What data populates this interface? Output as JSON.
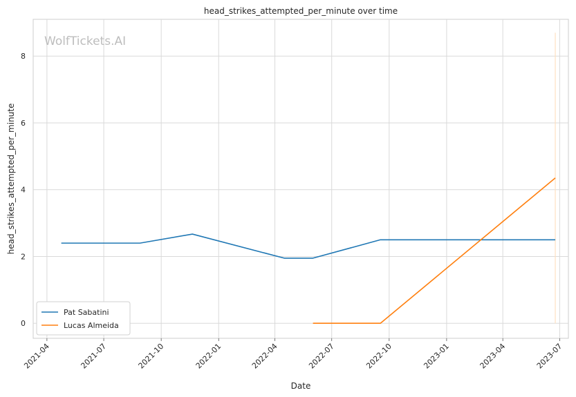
{
  "chart_data": {
    "type": "line",
    "title": "head_strikes_attempted_per_minute over time",
    "xlabel": "Date",
    "ylabel": "head_strikes_attempted_per_minute",
    "xlim": [
      "2021-03-10",
      "2023-07-15"
    ],
    "ylim": [
      -0.45,
      9.1
    ],
    "x_ticks": [
      "2021-04",
      "2021-07",
      "2021-10",
      "2022-01",
      "2022-04",
      "2022-07",
      "2022-10",
      "2023-01",
      "2023-04",
      "2023-07"
    ],
    "y_ticks": [
      0,
      2,
      4,
      6,
      8
    ],
    "grid": true,
    "legend_position": "lower-left",
    "series": [
      {
        "name": "Pat Sabatini",
        "color": "#1f77b4",
        "x": [
          "2021-04-24",
          "2021-08-28",
          "2021-11-20",
          "2022-04-16",
          "2022-06-01",
          "2022-09-17",
          "2023-06-24"
        ],
        "y": [
          2.4,
          2.4,
          2.67,
          1.95,
          1.95,
          2.5,
          2.5
        ]
      },
      {
        "name": "Lucas Almeida",
        "color": "#ff7f0e",
        "x": [
          "2022-06-01",
          "2022-09-17",
          "2023-06-24"
        ],
        "y": [
          0.0,
          0.0,
          4.35
        ]
      }
    ],
    "annotations": [
      {
        "type": "vertical_band",
        "x": "2023-06-24",
        "y_range": [
          0,
          8.7
        ],
        "color": "#ffe0c0"
      }
    ]
  },
  "watermark": "WolfTickets.AI"
}
